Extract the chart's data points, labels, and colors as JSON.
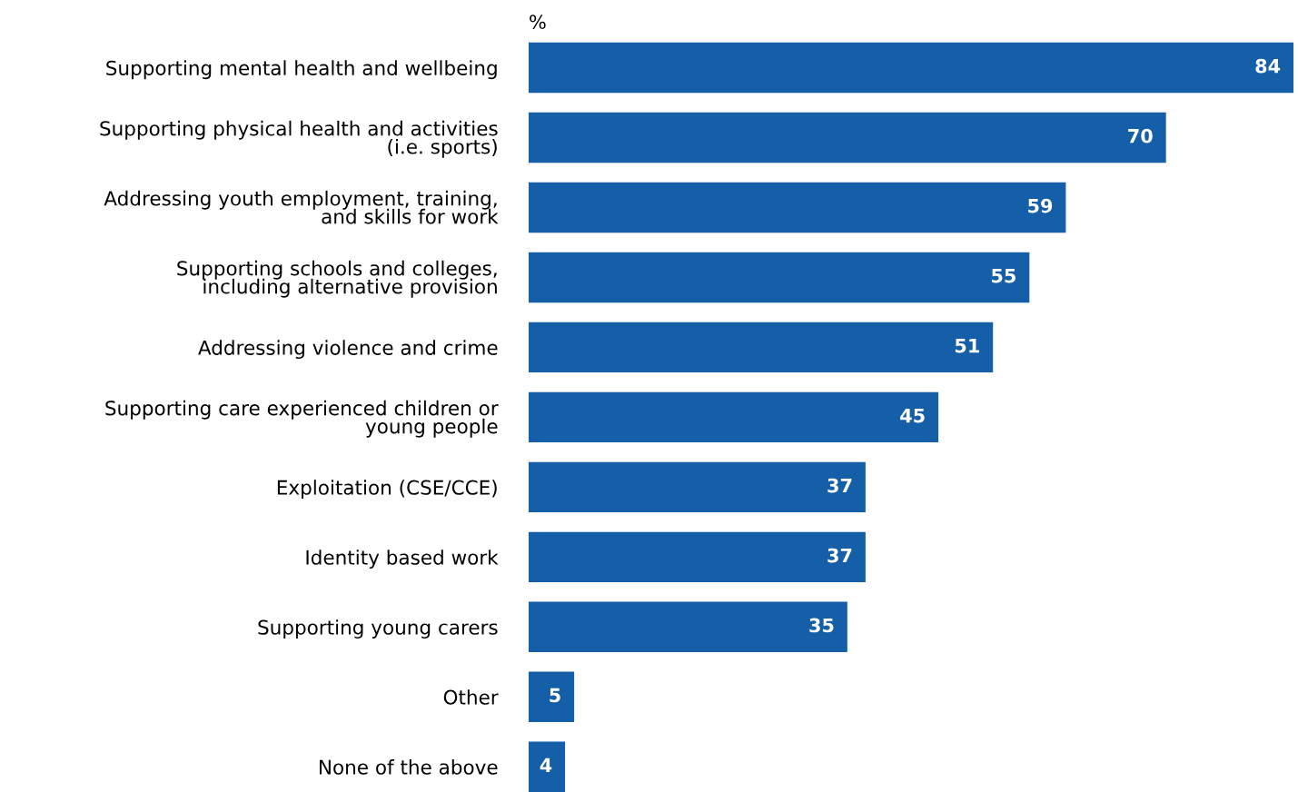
{
  "chart_data": {
    "type": "bar",
    "orientation": "horizontal",
    "xlabel": "%",
    "categories": [
      "Supporting mental health and wellbeing",
      "Supporting physical health and activities\n(i.e. sports)",
      "Addressing youth employment, training,\nand skills for work",
      "Supporting schools and colleges,\nincluding alternative provision",
      "Addressing violence and crime",
      "Supporting care experienced children or\nyoung people",
      "Exploitation (CSE/CCE)",
      "Identity based work",
      "Supporting young carers",
      "Other",
      "None of the above"
    ],
    "values": [
      84,
      70,
      59,
      55,
      51,
      45,
      37,
      37,
      35,
      5,
      4
    ],
    "color": "#155ea8",
    "data_labels": true
  }
}
